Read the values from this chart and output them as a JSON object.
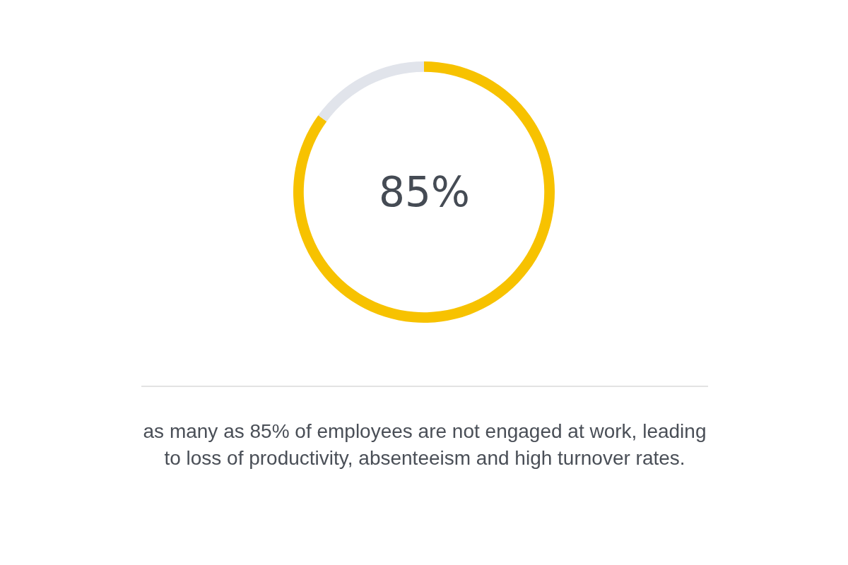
{
  "chart_data": {
    "type": "donut",
    "categories": [
      null,
      null
    ],
    "values": [
      85,
      15
    ],
    "colors": [
      "#f7c200",
      "#e1e4eb"
    ],
    "legend": false,
    "annotations": [
      "85%",
      "as many as 85% of employees are not engaged at work, leading to loss of productivity, absenteeism and high turnover rates."
    ]
  }
}
